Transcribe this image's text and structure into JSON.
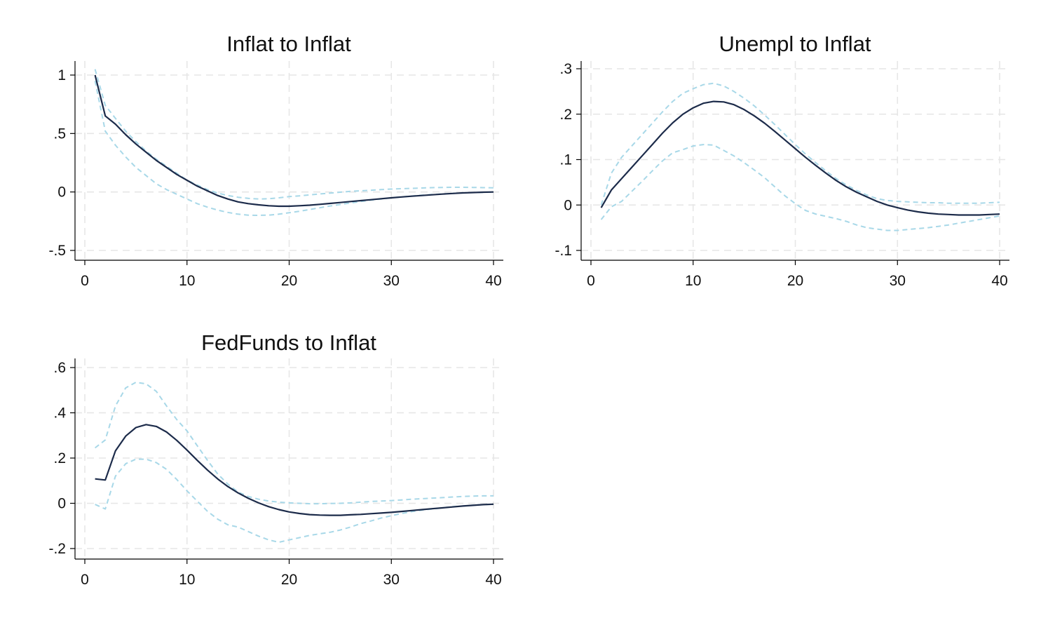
{
  "colors": {
    "irf": "#1c2b4a",
    "ci": "#a8d8e8",
    "grid": "#e6e6e6",
    "axis": "#000000",
    "background": "#ffffff"
  },
  "chart_data": [
    {
      "type": "line",
      "title": "Inflat to Inflat",
      "xlabel": "",
      "ylabel": "",
      "xlim": [
        0,
        40
      ],
      "ylim": [
        -0.58,
        1.1
      ],
      "grid": true,
      "xticks": [
        0,
        10,
        20,
        30,
        40
      ],
      "xtick_labels": [
        "0",
        "10",
        "20",
        "30",
        "40"
      ],
      "yticks": [
        -0.5,
        0,
        0.5,
        1
      ],
      "ytick_labels": [
        "-.5",
        "0",
        ".5",
        "1"
      ],
      "series": [
        {
          "role": "irf",
          "style": "solid",
          "x": [
            1,
            2,
            3,
            4,
            5,
            6,
            7,
            8,
            9,
            10,
            11,
            12,
            13,
            14,
            15,
            16,
            17,
            18,
            19,
            20,
            21,
            22,
            23,
            24,
            25,
            26,
            27,
            28,
            29,
            30,
            31,
            32,
            33,
            34,
            35,
            36,
            37,
            38,
            39,
            40
          ],
          "y": [
            1.0,
            0.65,
            0.58,
            0.49,
            0.41,
            0.34,
            0.27,
            0.21,
            0.15,
            0.1,
            0.05,
            0.01,
            -0.03,
            -0.06,
            -0.085,
            -0.1,
            -0.11,
            -0.118,
            -0.122,
            -0.122,
            -0.118,
            -0.113,
            -0.106,
            -0.098,
            -0.09,
            -0.082,
            -0.074,
            -0.066,
            -0.058,
            -0.05,
            -0.043,
            -0.036,
            -0.03,
            -0.024,
            -0.018,
            -0.013,
            -0.008,
            -0.005,
            -0.002,
            0.0
          ]
        },
        {
          "role": "ci-upper",
          "style": "dashed",
          "x": [
            1,
            2,
            3,
            4,
            5,
            6,
            7,
            8,
            9,
            10,
            11,
            12,
            13,
            14,
            15,
            16,
            17,
            18,
            19,
            20,
            21,
            22,
            23,
            24,
            25,
            26,
            27,
            28,
            29,
            30,
            31,
            32,
            33,
            34,
            35,
            36,
            37,
            38,
            39,
            40
          ],
          "y": [
            1.05,
            0.74,
            0.63,
            0.52,
            0.43,
            0.35,
            0.28,
            0.22,
            0.16,
            0.1,
            0.06,
            0.02,
            -0.01,
            -0.03,
            -0.045,
            -0.055,
            -0.06,
            -0.058,
            -0.05,
            -0.04,
            -0.033,
            -0.025,
            -0.017,
            -0.01,
            -0.002,
            0.005,
            0.01,
            0.015,
            0.02,
            0.025,
            0.028,
            0.031,
            0.034,
            0.037,
            0.039,
            0.04,
            0.04,
            0.039,
            0.037,
            0.035
          ]
        },
        {
          "role": "ci-lower",
          "style": "dashed",
          "x": [
            1,
            2,
            3,
            4,
            5,
            6,
            7,
            8,
            9,
            10,
            11,
            12,
            13,
            14,
            15,
            16,
            17,
            18,
            19,
            20,
            21,
            22,
            23,
            24,
            25,
            26,
            27,
            28,
            29,
            30,
            31,
            32,
            33,
            34,
            35,
            36,
            37,
            38,
            39,
            40
          ],
          "y": [
            0.95,
            0.52,
            0.4,
            0.3,
            0.21,
            0.14,
            0.07,
            0.02,
            -0.02,
            -0.06,
            -0.1,
            -0.13,
            -0.155,
            -0.175,
            -0.19,
            -0.198,
            -0.2,
            -0.198,
            -0.19,
            -0.178,
            -0.165,
            -0.15,
            -0.135,
            -0.12,
            -0.107,
            -0.094,
            -0.082,
            -0.07,
            -0.06,
            -0.05,
            -0.042,
            -0.035,
            -0.028,
            -0.022,
            -0.017,
            -0.012,
            -0.008,
            -0.005,
            -0.003,
            -0.002
          ]
        }
      ]
    },
    {
      "type": "line",
      "title": "Unempl to Inflat",
      "xlabel": "",
      "ylabel": "",
      "xlim": [
        0,
        40
      ],
      "ylim": [
        -0.12,
        0.32
      ],
      "grid": true,
      "xticks": [
        0,
        10,
        20,
        30,
        40
      ],
      "xtick_labels": [
        "0",
        "10",
        "20",
        "30",
        "40"
      ],
      "yticks": [
        -0.1,
        0,
        0.1,
        0.2,
        0.3
      ],
      "ytick_labels": [
        "-.1",
        "0",
        ".1",
        ".2",
        ".3"
      ],
      "series": [
        {
          "role": "irf",
          "style": "solid",
          "x": [
            1,
            2,
            3,
            4,
            5,
            6,
            7,
            8,
            9,
            10,
            11,
            12,
            13,
            14,
            15,
            16,
            17,
            18,
            19,
            20,
            21,
            22,
            23,
            24,
            25,
            26,
            27,
            28,
            29,
            30,
            31,
            32,
            33,
            34,
            35,
            36,
            37,
            38,
            39,
            40
          ],
          "y": [
            -0.006,
            0.033,
            0.058,
            0.083,
            0.108,
            0.133,
            0.158,
            0.181,
            0.2,
            0.214,
            0.224,
            0.228,
            0.227,
            0.221,
            0.21,
            0.196,
            0.18,
            0.162,
            0.143,
            0.124,
            0.105,
            0.087,
            0.07,
            0.054,
            0.04,
            0.028,
            0.018,
            0.008,
            0.0,
            -0.006,
            -0.011,
            -0.015,
            -0.018,
            -0.02,
            -0.021,
            -0.022,
            -0.022,
            -0.022,
            -0.021,
            -0.02
          ]
        },
        {
          "role": "ci-upper",
          "style": "dashed",
          "x": [
            1,
            2,
            3,
            4,
            5,
            6,
            7,
            8,
            9,
            10,
            11,
            12,
            13,
            14,
            15,
            16,
            17,
            18,
            19,
            20,
            21,
            22,
            23,
            24,
            25,
            26,
            27,
            28,
            29,
            30,
            31,
            32,
            33,
            34,
            35,
            36,
            37,
            38,
            39,
            40
          ],
          "y": [
            0.0,
            0.07,
            0.105,
            0.13,
            0.155,
            0.18,
            0.205,
            0.228,
            0.246,
            0.256,
            0.265,
            0.268,
            0.262,
            0.25,
            0.235,
            0.218,
            0.198,
            0.177,
            0.155,
            0.133,
            0.112,
            0.093,
            0.075,
            0.058,
            0.044,
            0.032,
            0.022,
            0.014,
            0.01,
            0.008,
            0.007,
            0.006,
            0.005,
            0.005,
            0.004,
            0.004,
            0.004,
            0.004,
            0.005,
            0.006
          ]
        },
        {
          "role": "ci-lower",
          "style": "dashed",
          "x": [
            1,
            2,
            3,
            4,
            5,
            6,
            7,
            8,
            9,
            10,
            11,
            12,
            13,
            14,
            15,
            16,
            17,
            18,
            19,
            20,
            21,
            22,
            23,
            24,
            25,
            26,
            27,
            28,
            29,
            30,
            31,
            32,
            33,
            34,
            35,
            36,
            37,
            38,
            39,
            40
          ],
          "y": [
            -0.032,
            -0.004,
            0.008,
            0.03,
            0.052,
            0.075,
            0.097,
            0.115,
            0.122,
            0.13,
            0.133,
            0.132,
            0.12,
            0.108,
            0.093,
            0.077,
            0.06,
            0.04,
            0.02,
            0.003,
            -0.012,
            -0.02,
            -0.025,
            -0.03,
            -0.036,
            -0.044,
            -0.05,
            -0.053,
            -0.056,
            -0.056,
            -0.054,
            -0.052,
            -0.05,
            -0.047,
            -0.044,
            -0.04,
            -0.036,
            -0.032,
            -0.028,
            -0.024
          ]
        }
      ]
    },
    {
      "type": "line",
      "title": "FedFunds to Inflat",
      "xlabel": "",
      "ylabel": "",
      "xlim": [
        0,
        40
      ],
      "ylim": [
        -0.24,
        0.64
      ],
      "grid": true,
      "xticks": [
        0,
        10,
        20,
        30,
        40
      ],
      "xtick_labels": [
        "0",
        "10",
        "20",
        "30",
        "40"
      ],
      "yticks": [
        -0.2,
        0,
        0.2,
        0.4,
        0.6
      ],
      "ytick_labels": [
        "-.2",
        "0",
        ".2",
        ".4",
        ".6"
      ],
      "series": [
        {
          "role": "irf",
          "style": "solid",
          "x": [
            1,
            2,
            3,
            4,
            5,
            6,
            7,
            8,
            9,
            10,
            11,
            12,
            13,
            14,
            15,
            16,
            17,
            18,
            19,
            20,
            21,
            22,
            23,
            24,
            25,
            26,
            27,
            28,
            29,
            30,
            31,
            32,
            33,
            34,
            35,
            36,
            37,
            38,
            39,
            40
          ],
          "y": [
            0.108,
            0.103,
            0.232,
            0.297,
            0.335,
            0.348,
            0.34,
            0.315,
            0.278,
            0.235,
            0.19,
            0.147,
            0.108,
            0.074,
            0.046,
            0.022,
            0.002,
            -0.015,
            -0.028,
            -0.038,
            -0.045,
            -0.05,
            -0.052,
            -0.053,
            -0.053,
            -0.051,
            -0.049,
            -0.046,
            -0.043,
            -0.04,
            -0.036,
            -0.032,
            -0.028,
            -0.024,
            -0.02,
            -0.016,
            -0.012,
            -0.009,
            -0.006,
            -0.004
          ]
        },
        {
          "role": "ci-upper",
          "style": "dashed",
          "x": [
            1,
            2,
            3,
            4,
            5,
            6,
            7,
            8,
            9,
            10,
            11,
            12,
            13,
            14,
            15,
            16,
            17,
            18,
            19,
            20,
            21,
            22,
            23,
            24,
            25,
            26,
            27,
            28,
            29,
            30,
            31,
            32,
            33,
            34,
            35,
            36,
            37,
            38,
            39,
            40
          ],
          "y": [
            0.245,
            0.28,
            0.43,
            0.51,
            0.535,
            0.528,
            0.495,
            0.43,
            0.37,
            0.32,
            0.255,
            0.19,
            0.13,
            0.085,
            0.05,
            0.03,
            0.018,
            0.01,
            0.005,
            0.002,
            0.0,
            -0.002,
            -0.002,
            -0.001,
            0.0,
            0.002,
            0.005,
            0.008,
            0.01,
            0.012,
            0.015,
            0.018,
            0.02,
            0.023,
            0.025,
            0.028,
            0.03,
            0.032,
            0.033,
            0.033
          ]
        },
        {
          "role": "ci-lower",
          "style": "dashed",
          "x": [
            1,
            2,
            3,
            4,
            5,
            6,
            7,
            8,
            9,
            10,
            11,
            12,
            13,
            14,
            15,
            16,
            17,
            18,
            19,
            20,
            21,
            22,
            23,
            24,
            25,
            26,
            27,
            28,
            29,
            30,
            31,
            32,
            33,
            34,
            35,
            36,
            37,
            38,
            39,
            40
          ],
          "y": [
            -0.005,
            -0.025,
            0.12,
            0.175,
            0.195,
            0.195,
            0.18,
            0.15,
            0.105,
            0.055,
            0.01,
            -0.035,
            -0.07,
            -0.095,
            -0.105,
            -0.125,
            -0.145,
            -0.162,
            -0.172,
            -0.162,
            -0.152,
            -0.142,
            -0.135,
            -0.128,
            -0.118,
            -0.105,
            -0.09,
            -0.078,
            -0.065,
            -0.055,
            -0.045,
            -0.037,
            -0.03,
            -0.025,
            -0.02,
            -0.015,
            -0.012,
            -0.008,
            -0.006,
            -0.004
          ]
        }
      ]
    }
  ]
}
